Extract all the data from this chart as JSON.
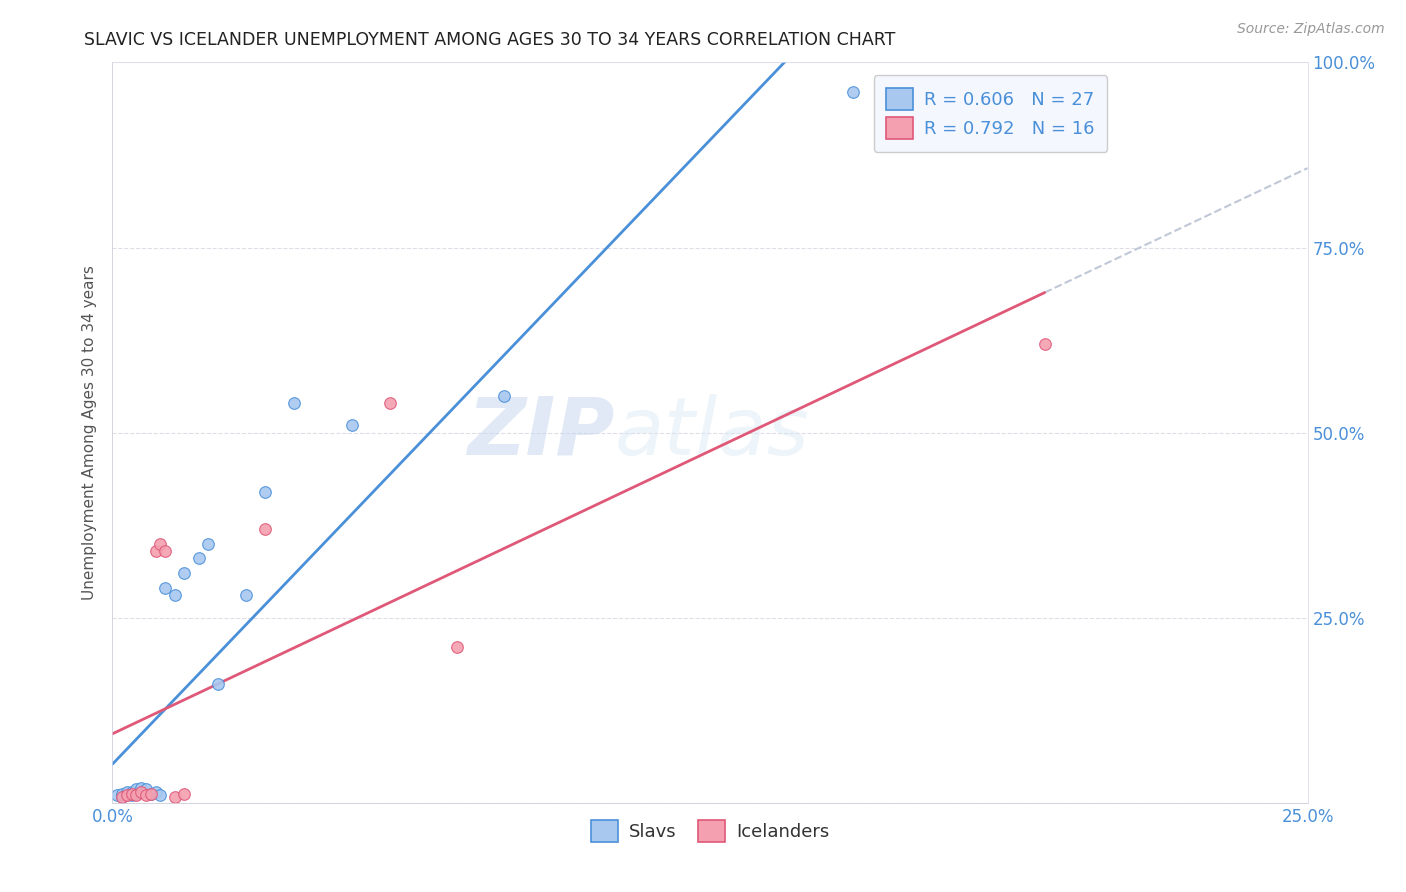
{
  "title": "SLAVIC VS ICELANDER UNEMPLOYMENT AMONG AGES 30 TO 34 YEARS CORRELATION CHART",
  "source": "Source: ZipAtlas.com",
  "ylabel_label": "Unemployment Among Ages 30 to 34 years",
  "xlim": [
    0,
    0.25
  ],
  "ylim": [
    0,
    1.0
  ],
  "xticks": [
    0.0,
    0.05,
    0.1,
    0.15,
    0.2,
    0.25
  ],
  "yticks": [
    0.0,
    0.25,
    0.5,
    0.75,
    1.0
  ],
  "slavs_x": [
    0.001,
    0.002,
    0.002,
    0.003,
    0.003,
    0.004,
    0.004,
    0.005,
    0.005,
    0.006,
    0.006,
    0.007,
    0.008,
    0.009,
    0.01,
    0.011,
    0.013,
    0.015,
    0.018,
    0.02,
    0.022,
    0.028,
    0.032,
    0.038,
    0.05,
    0.082,
    0.155
  ],
  "slavs_y": [
    0.01,
    0.008,
    0.012,
    0.01,
    0.015,
    0.01,
    0.015,
    0.012,
    0.018,
    0.015,
    0.02,
    0.018,
    0.012,
    0.015,
    0.01,
    0.29,
    0.28,
    0.31,
    0.33,
    0.35,
    0.16,
    0.28,
    0.42,
    0.54,
    0.51,
    0.55,
    0.96
  ],
  "icelanders_x": [
    0.002,
    0.003,
    0.004,
    0.005,
    0.006,
    0.007,
    0.008,
    0.009,
    0.01,
    0.011,
    0.013,
    0.015,
    0.032,
    0.058,
    0.072,
    0.195
  ],
  "icelanders_y": [
    0.008,
    0.01,
    0.012,
    0.01,
    0.015,
    0.01,
    0.012,
    0.34,
    0.35,
    0.34,
    0.008,
    0.012,
    0.37,
    0.54,
    0.21,
    0.62
  ],
  "slavs_color": "#a8c8f0",
  "icelanders_color": "#f4a0b0",
  "slavs_line_color": "#4a90d9",
  "icelanders_line_color": "#e05878",
  "trendline_extend_color": "#c0c8d8",
  "R_slavs": 0.606,
  "N_slavs": 27,
  "R_icelanders": 0.792,
  "N_icelanders": 16,
  "legend_label_slavs": "Slavs",
  "legend_label_icelanders": "Icelanders",
  "marker_size": 70,
  "marker_edge_width": 0.8,
  "title_color": "#222222",
  "axis_color": "#4a90d9",
  "watermark_zip": "ZIP",
  "watermark_atlas": "atlas",
  "background_color": "#ffffff",
  "grid_color": "#c8c8d8",
  "grid_style": "--",
  "grid_alpha": 0.6
}
